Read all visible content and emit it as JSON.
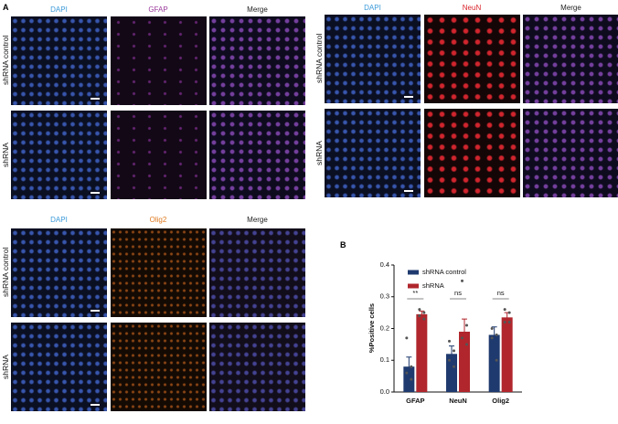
{
  "panel_a": {
    "label": "A",
    "groups": [
      {
        "columns": [
          "DAPI",
          "GFAP",
          "Merge"
        ],
        "rows": [
          "shRNA control",
          "shRNA"
        ]
      },
      {
        "columns": [
          "DAPI",
          "NeuN",
          "Merge"
        ],
        "rows": [
          "shRNA control",
          "shRNA"
        ]
      },
      {
        "columns": [
          "DAPI",
          "Olig2",
          "Merge"
        ],
        "rows": [
          "shRNA control",
          "shRNA"
        ]
      }
    ]
  },
  "panel_b": {
    "label": "B"
  },
  "chart_data": {
    "type": "bar",
    "y_label": "%Positive cells",
    "categories": [
      "GFAP",
      "NeuN",
      "Olig2"
    ],
    "series": [
      {
        "name": "shRNA control",
        "color": "#1f3a6e",
        "values": [
          0.08,
          0.12,
          0.18
        ],
        "errors": [
          0.03,
          0.025,
          0.025
        ],
        "points": [
          [
            0.17,
            0.08,
            0.06,
            0.04
          ],
          [
            0.16,
            0.13,
            0.1,
            0.08
          ],
          [
            0.2,
            0.18,
            0.17,
            0.1
          ]
        ]
      },
      {
        "name": "shRNA",
        "color": "#b0262c",
        "values": [
          0.245,
          0.19,
          0.235
        ],
        "errors": [
          0.01,
          0.04,
          0.015
        ],
        "points": [
          [
            0.26,
            0.25,
            0.24,
            0.23
          ],
          [
            0.35,
            0.21,
            0.17,
            0.15
          ],
          [
            0.26,
            0.25,
            0.22,
            0.22
          ]
        ]
      }
    ],
    "significance": [
      "**",
      "ns",
      "ns"
    ],
    "ylim": [
      0,
      0.4
    ],
    "yticks": [
      {
        "value": 0,
        "label": "0.0"
      },
      0.1,
      0.2,
      0.3,
      0.4
    ],
    "legend": "top"
  }
}
